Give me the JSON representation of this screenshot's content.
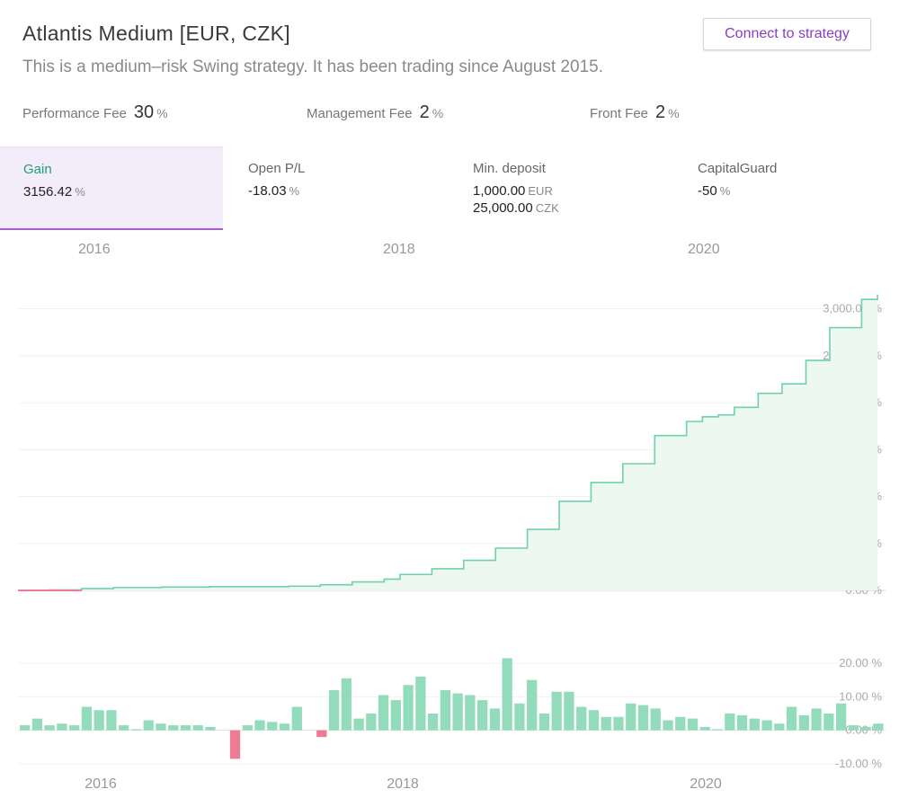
{
  "header": {
    "title": "Atlantis Medium [EUR, CZK]",
    "subtitle": "This is a medium–risk Swing strategy. It has been trading since August 2015.",
    "connect_label": "Connect to strategy"
  },
  "fees": [
    {
      "label": "Performance Fee",
      "value": "30",
      "unit": "%"
    },
    {
      "label": "Management Fee",
      "value": "2",
      "unit": "%"
    },
    {
      "label": "Front Fee",
      "value": "2",
      "unit": "%"
    }
  ],
  "stats": {
    "gain": {
      "label": "Gain",
      "value": "3156.42",
      "unit": "%"
    },
    "open_pl": {
      "label": "Open P/L",
      "value": "-18.03",
      "unit": "%"
    },
    "min_deposit": {
      "label": "Min. deposit",
      "value1": "1,000.00",
      "unit1": "EUR",
      "value2": "25,000.00",
      "unit2": "CZK"
    },
    "capital_guard": {
      "label": "CapitalGuard",
      "value": "-50",
      "unit": "%"
    }
  },
  "colors": {
    "accent": "#8b3cc4",
    "gain_line": "#6fd1a6",
    "gain_fill": "#eef8f3",
    "positive_bar": "#93dcbb",
    "negative_bar": "#ec7b93",
    "active_tab": "#f3ecfb"
  },
  "chart_data": [
    {
      "type": "area",
      "x_tick_labels": [
        "2016",
        "2018",
        "2020"
      ],
      "y_tick_labels": [
        "0.00 %",
        "500.00 %",
        "1,000.00 %",
        "1,500.00 %",
        "2,000.00 %",
        "2,500.00 %",
        "3,000.00 %"
      ],
      "ylim": [
        0,
        3150
      ],
      "x_range": [
        2015.6,
        2021.05
      ],
      "x": [
        2015.6,
        2015.8,
        2016.0,
        2016.2,
        2016.5,
        2016.8,
        2017.0,
        2017.3,
        2017.5,
        2017.7,
        2017.9,
        2018.0,
        2018.2,
        2018.4,
        2018.6,
        2018.8,
        2019.0,
        2019.2,
        2019.4,
        2019.6,
        2019.8,
        2019.9,
        2020.0,
        2020.1,
        2020.25,
        2020.4,
        2020.55,
        2020.7,
        2020.9,
        2021.0
      ],
      "values": [
        0,
        5,
        20,
        30,
        35,
        40,
        40,
        45,
        60,
        90,
        120,
        170,
        230,
        320,
        450,
        650,
        950,
        1150,
        1350,
        1650,
        1800,
        1850,
        1870,
        1950,
        2100,
        2200,
        2450,
        2800,
        3100,
        3150
      ]
    },
    {
      "type": "bar",
      "y_tick_labels": [
        "20.00 %",
        "10.00 %",
        "0.00 %",
        "-10.00 %"
      ],
      "ylim": [
        -12,
        22
      ],
      "values": [
        1.5,
        3.5,
        1.5,
        2,
        1.5,
        7,
        6,
        6,
        1.5,
        0.3,
        3,
        2,
        1.5,
        1.5,
        1.5,
        1,
        0,
        -8.5,
        1.5,
        3,
        2.5,
        2,
        7,
        0,
        -2,
        12,
        15.5,
        3.5,
        5,
        10.5,
        9,
        13.5,
        16,
        5,
        12,
        11,
        10.5,
        9,
        6.5,
        21.5,
        8,
        15,
        5,
        11.5,
        11.5,
        7,
        6,
        4,
        4,
        8,
        7.5,
        6.5,
        3,
        4,
        3.5,
        1,
        0.3,
        5,
        4.5,
        3.5,
        3,
        2,
        7,
        4.5,
        6.5,
        5,
        8,
        1.5,
        1,
        2
      ]
    }
  ]
}
